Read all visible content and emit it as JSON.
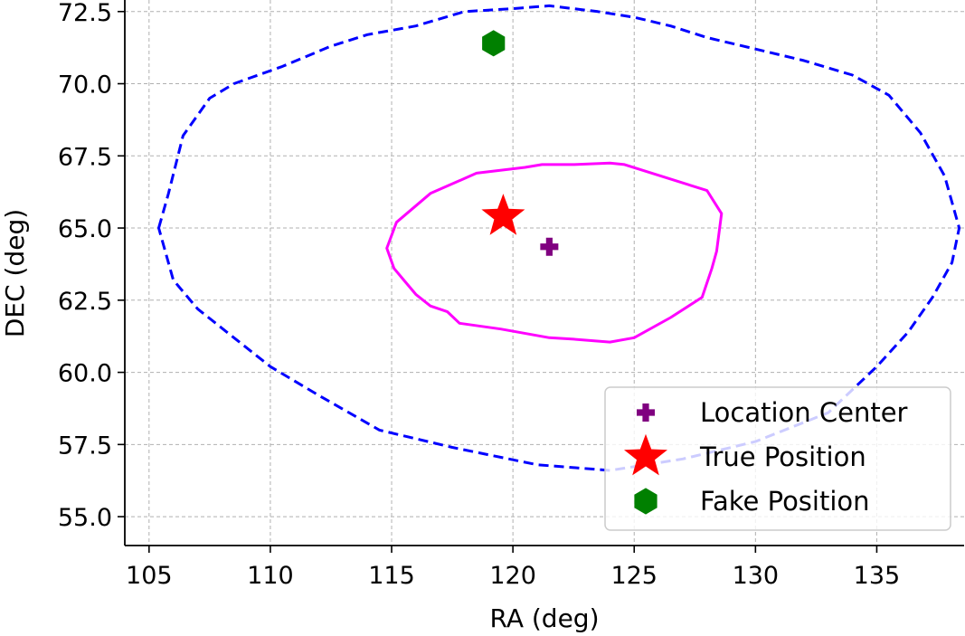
{
  "chart_data": {
    "type": "line",
    "xlabel": "RA (deg)",
    "ylabel": "DEC (deg)",
    "xlim": [
      104,
      138.6
    ],
    "ylim": [
      54.0,
      72.9
    ],
    "xticks": [
      105,
      110,
      115,
      120,
      125,
      130,
      135
    ],
    "yticks": [
      55.0,
      57.5,
      60.0,
      62.5,
      65.0,
      67.5,
      70.0,
      72.5
    ],
    "xtick_labels": [
      "105",
      "110",
      "115",
      "120",
      "125",
      "130",
      "135"
    ],
    "ytick_labels": [
      "55.0",
      "57.5",
      "60.0",
      "62.5",
      "65.0",
      "67.5",
      "70.0",
      "72.5"
    ],
    "grid": true,
    "legend_position": "bottom-right",
    "series": [
      {
        "style": "dashed",
        "color": "#0000ff",
        "closed": true,
        "x": [
          105.4,
          105.8,
          106.4,
          107.5,
          108.5,
          110.5,
          112.5,
          114.0,
          116.0,
          118.0,
          120.0,
          121.5,
          123.5,
          125.0,
          126.5,
          128.0,
          130.0,
          132.0,
          134.0,
          135.5,
          136.8,
          137.8,
          138.4,
          138.1,
          137.3,
          136.3,
          135.0,
          133.0,
          130.0,
          127.0,
          124.0,
          121.0,
          117.5,
          114.5,
          112.0,
          110.0,
          108.2,
          107.0,
          106.0,
          105.4
        ],
        "y": [
          65.0,
          66.2,
          68.2,
          69.5,
          70.0,
          70.6,
          71.3,
          71.7,
          72.0,
          72.5,
          72.6,
          72.7,
          72.5,
          72.3,
          72.0,
          71.6,
          71.2,
          70.8,
          70.3,
          69.6,
          68.3,
          66.8,
          65.0,
          63.8,
          62.6,
          61.4,
          60.2,
          58.6,
          57.6,
          57.0,
          56.6,
          56.8,
          57.4,
          58.0,
          59.2,
          60.2,
          61.4,
          62.2,
          63.2,
          65.0
        ]
      },
      {
        "style": "solid",
        "color": "#ff00ff",
        "closed": true,
        "x": [
          114.8,
          115.2,
          116.6,
          118.5,
          120.5,
          121.2,
          122.5,
          124.0,
          124.6,
          128.0,
          128.6,
          128.4,
          128.2,
          127.8,
          126.5,
          125.0,
          124.0,
          122.5,
          121.5,
          119.5,
          117.8,
          117.3,
          116.6,
          116.0,
          115.5,
          115.1,
          114.8
        ],
        "y": [
          64.3,
          65.2,
          66.2,
          66.9,
          67.1,
          67.2,
          67.2,
          67.25,
          67.2,
          66.3,
          65.5,
          64.2,
          63.6,
          62.6,
          61.9,
          61.2,
          61.05,
          61.15,
          61.2,
          61.5,
          61.7,
          62.1,
          62.3,
          62.7,
          63.2,
          63.6,
          64.3
        ]
      }
    ],
    "markers": [
      {
        "label": "Location Center",
        "shape": "plus",
        "color": "#800080",
        "x": 121.5,
        "y": 64.35
      },
      {
        "label": "True Position",
        "shape": "star",
        "color": "#ff0000",
        "x": 119.6,
        "y": 65.4
      },
      {
        "label": "Fake Position",
        "shape": "hexagon",
        "color": "#008000",
        "x": 119.2,
        "y": 71.4
      }
    ]
  }
}
